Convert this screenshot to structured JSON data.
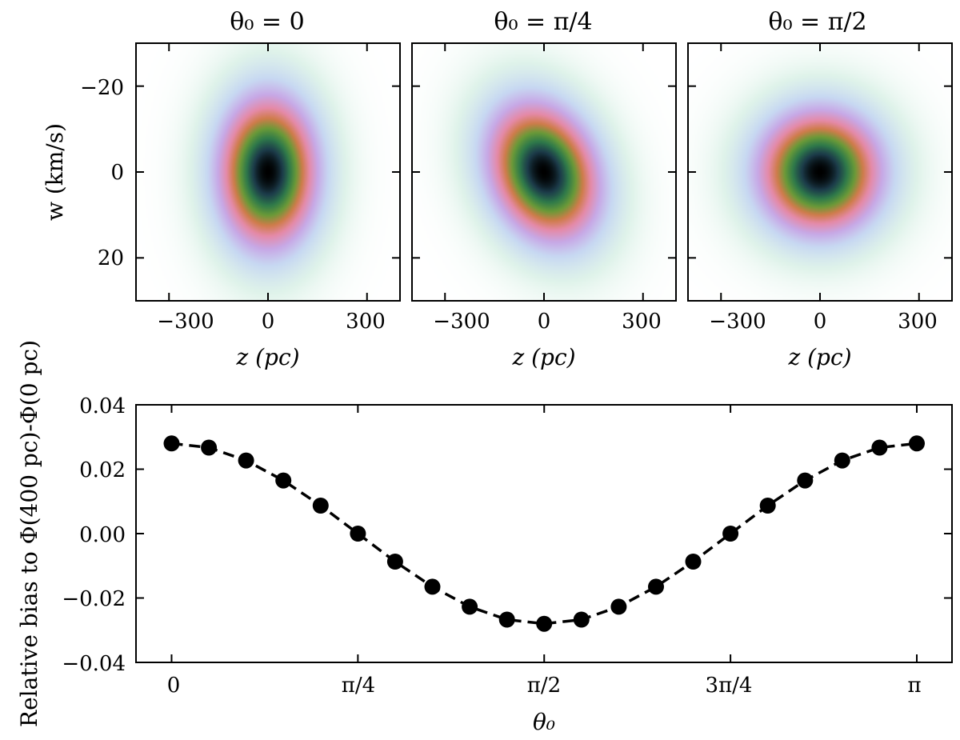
{
  "chart_data": [
    {
      "type": "heatmap",
      "title": "θ₀ = 0",
      "theta0": 0,
      "xlabel": "z (pc)",
      "ylabel": "w (km/s)",
      "xlim": [
        -400,
        400
      ],
      "ylim": [
        -30,
        30
      ],
      "xticks": [
        -300,
        0,
        300
      ],
      "xtick_labels": [
        "−300",
        "0",
        "300"
      ],
      "yticks": [
        -20,
        0,
        20
      ],
      "ytick_labels": [
        "−20",
        "0",
        "20"
      ],
      "sigma_z_pc": 115,
      "sigma_w_kms": 11
    },
    {
      "type": "heatmap",
      "title": "θ₀ = π/4",
      "theta0": 0.7854,
      "xlabel": "z (pc)",
      "ylabel": "",
      "xlim": [
        -400,
        400
      ],
      "ylim": [
        -30,
        30
      ],
      "xticks": [
        -300,
        0,
        300
      ],
      "xtick_labels": [
        "−300",
        "0",
        "300"
      ],
      "yticks": [
        -20,
        0,
        20
      ],
      "ytick_labels": [],
      "sigma_z_pc": 115,
      "sigma_w_kms": 11
    },
    {
      "type": "heatmap",
      "title": "θ₀ = π/2",
      "theta0": 1.5708,
      "xlabel": "z (pc)",
      "ylabel": "",
      "xlim": [
        -400,
        400
      ],
      "ylim": [
        -30,
        30
      ],
      "xticks": [
        -300,
        0,
        300
      ],
      "xtick_labels": [
        "−300",
        "0",
        "300"
      ],
      "yticks": [
        -20,
        0,
        20
      ],
      "ytick_labels": [],
      "sigma_z_pc": 115,
      "sigma_w_kms": 11
    },
    {
      "type": "line",
      "title": "",
      "xlabel": "θ₀",
      "ylabel": "Relative bias to Φ(400 pc)-Φ(0 pc)",
      "xlim": [
        -0.15,
        3.29
      ],
      "ylim": [
        -0.04,
        0.04
      ],
      "xticks": [
        0,
        0.7854,
        1.5708,
        2.3562,
        3.1416
      ],
      "xtick_labels": [
        "0",
        "π/4",
        "π/2",
        "3π/4",
        "π"
      ],
      "yticks": [
        -0.04,
        -0.02,
        0.0,
        0.02,
        0.04
      ],
      "ytick_labels": [
        "−0.04",
        "−0.02",
        "0.00",
        "0.02",
        "0.04"
      ],
      "series": [
        {
          "x": [
            0.0,
            0.1571,
            0.3142,
            0.4712,
            0.6283,
            0.7854,
            0.9425,
            1.0996,
            1.2566,
            1.4137,
            1.5708,
            1.7279,
            1.885,
            2.042,
            2.1991,
            2.3562,
            2.5133,
            2.6704,
            2.8274,
            2.9845,
            3.1416
          ],
          "y": [
            0.028,
            0.0267,
            0.0227,
            0.0165,
            0.0087,
            0.0,
            -0.0087,
            -0.0165,
            -0.0227,
            -0.0267,
            -0.028,
            -0.0267,
            -0.0227,
            -0.0165,
            -0.0087,
            0.0,
            0.0087,
            0.0165,
            0.0227,
            0.0267,
            0.028
          ],
          "style": "dashed black line with filled black circle markers"
        }
      ],
      "grid": false
    }
  ]
}
